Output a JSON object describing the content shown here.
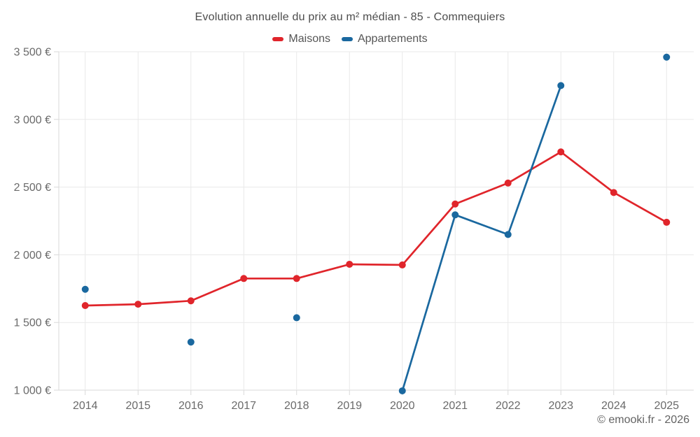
{
  "header": {
    "title": "Evolution annuelle du prix au m² médian - 85 - Commequiers"
  },
  "footer": {
    "copyright": "© emooki.fr - 2026"
  },
  "chart_data": {
    "type": "line",
    "title": "Evolution annuelle du prix au m² médian - 85 - Commequiers",
    "categories": [
      "2014",
      "2015",
      "2016",
      "2017",
      "2018",
      "2019",
      "2020",
      "2021",
      "2022",
      "2023",
      "2024",
      "2025"
    ],
    "series": [
      {
        "name": "Maisons",
        "color": "#e0252b",
        "values": [
          1625,
          1635,
          1660,
          1825,
          1825,
          1930,
          1925,
          2375,
          2530,
          2760,
          2460,
          2240
        ]
      },
      {
        "name": "Appartements",
        "color": "#1a689f",
        "values": [
          1745,
          null,
          1355,
          null,
          1535,
          null,
          995,
          2295,
          2150,
          3250,
          null,
          3460
        ]
      }
    ],
    "xlabel": "",
    "ylabel": "",
    "ylim": [
      1000,
      3500
    ],
    "yticks": [
      {
        "value": 1000,
        "label": "1 000 €"
      },
      {
        "value": 1500,
        "label": "1 500 €"
      },
      {
        "value": 2000,
        "label": "2 000 €"
      },
      {
        "value": 2500,
        "label": "2 500 €"
      },
      {
        "value": 3000,
        "label": "3 000 €"
      },
      {
        "value": 3500,
        "label": "3 500 €"
      }
    ],
    "grid": true,
    "legend_position": "top",
    "currency_suffix": "€"
  }
}
